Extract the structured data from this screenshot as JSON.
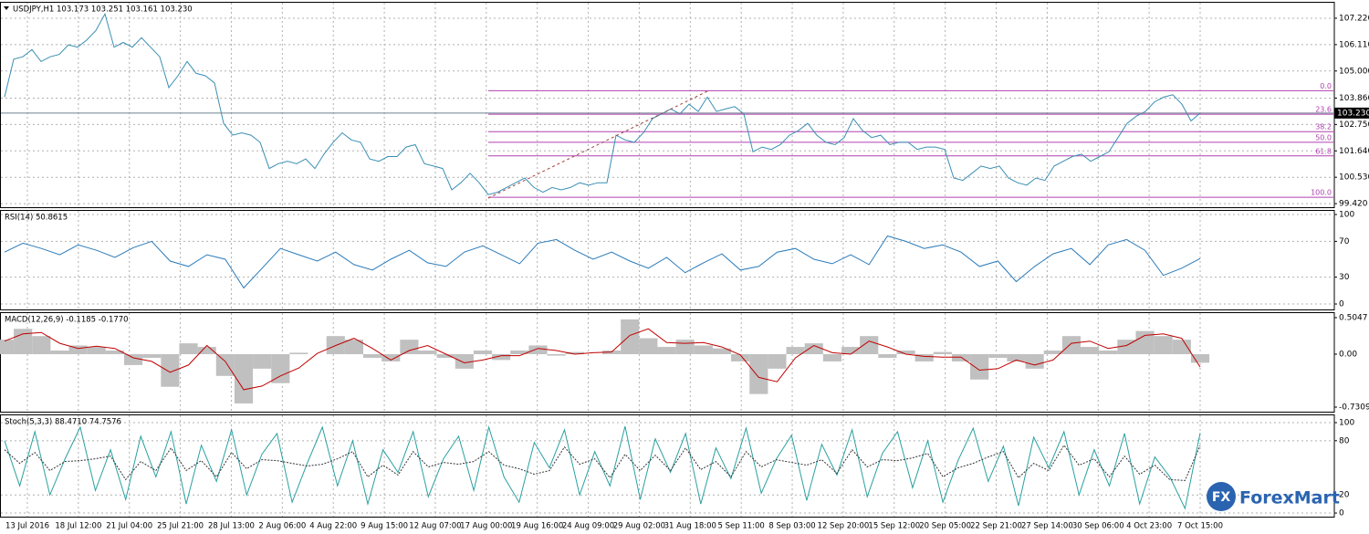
{
  "chart_data": [
    {
      "type": "line",
      "title": "USDJPY,H1  103.173 103.251 103.161 103.230",
      "series": [
        {
          "color": "#3a8fb3",
          "values": [
            103.9,
            105.5,
            105.6,
            105.9,
            105.4,
            105.6,
            105.7,
            106.1,
            106.0,
            106.3,
            106.7,
            107.4,
            106.0,
            106.2,
            106.0,
            106.4,
            106.0,
            105.6,
            104.3,
            104.8,
            105.4,
            104.9,
            104.8,
            104.5,
            102.8,
            102.3,
            102.4,
            102.3,
            102.0,
            100.9,
            101.1,
            101.2,
            101.1,
            101.3,
            100.9,
            101.5,
            102.0,
            102.4,
            102.1,
            102.0,
            101.3,
            101.2,
            101.4,
            101.4,
            101.8,
            101.9,
            101.1,
            101.0,
            100.9,
            100.0,
            100.3,
            100.7,
            100.3,
            99.8,
            99.9,
            100.1,
            100.3,
            100.5,
            100.1,
            99.9,
            100.1,
            100.0,
            100.1,
            100.3,
            100.2,
            100.3,
            100.3,
            102.3,
            102.1,
            102.0,
            102.4,
            103.0,
            103.2,
            103.4,
            103.2,
            103.6,
            103.3,
            103.9,
            103.3,
            103.4,
            103.5,
            103.2,
            101.6,
            101.8,
            101.7,
            101.9,
            102.3,
            102.5,
            102.8,
            102.3,
            102.0,
            101.9,
            102.2,
            103.0,
            102.5,
            102.2,
            102.3,
            101.9,
            102.0,
            102.0,
            101.7,
            101.8,
            101.8,
            101.7,
            100.5,
            100.4,
            100.7,
            101.0,
            100.9,
            101.0,
            100.5,
            100.3,
            100.2,
            100.5,
            100.4,
            101.0,
            101.2,
            101.4,
            101.5,
            101.2,
            101.4,
            101.6,
            102.2,
            102.8,
            103.1,
            103.3,
            103.7,
            103.9,
            104.0,
            103.6,
            102.9,
            103.23
          ]
        }
      ],
      "ylim": [
        99.27,
        107.91
      ],
      "yticks": [
        {
          "value": 107.22,
          "label": "107.220"
        },
        {
          "value": 106.11,
          "label": "106.110"
        },
        {
          "value": 105.0,
          "label": "105.000"
        },
        {
          "value": 103.86,
          "label": "103.860"
        },
        {
          "value": 102.75,
          "label": "102.750"
        },
        {
          "value": 101.64,
          "label": "101.640"
        },
        {
          "value": 100.53,
          "label": "100.530"
        },
        {
          "value": 99.42,
          "label": "99.420"
        }
      ],
      "last_price": {
        "value": 103.23,
        "label": "103.230"
      },
      "fib_color": "#b040b0",
      "fib_levels": [
        {
          "value": 104.17,
          "label": "0.0"
        },
        {
          "value": 103.18,
          "label": "23.6"
        },
        {
          "value": 102.45,
          "label": "38.2"
        },
        {
          "value": 102.0,
          "label": "50.0"
        },
        {
          "value": 101.43,
          "label": "61.8"
        },
        {
          "value": 99.69,
          "label": "100.0"
        }
      ],
      "grid": true
    },
    {
      "type": "line",
      "title": "RSI(14) 50.8615",
      "series": [
        {
          "color": "#2b7bb9",
          "values": [
            58,
            68,
            62,
            55,
            66,
            60,
            52,
            63,
            70,
            48,
            42,
            55,
            50,
            18,
            40,
            62,
            55,
            48,
            58,
            44,
            38,
            50,
            60,
            46,
            42,
            58,
            65,
            55,
            45,
            68,
            72,
            60,
            50,
            58,
            48,
            40,
            52,
            35,
            46,
            56,
            38,
            42,
            58,
            62,
            50,
            45,
            55,
            44,
            76,
            70,
            62,
            66,
            58,
            42,
            48,
            25,
            42,
            56,
            62,
            44,
            66,
            72,
            60,
            32,
            40,
            50.8615
          ]
        }
      ],
      "ylim": [
        -6.1,
        105.1
      ],
      "yticks": [
        100,
        70,
        30,
        0
      ],
      "grid": true
    },
    {
      "type": "bar",
      "title": "MACD(12,26,9) -0.1185 -0.1770",
      "series": [
        {
          "color": "#c0c0c0",
          "values": [
            0.2,
            0.35,
            0.25,
            0.05,
            0.12,
            0.1,
            0.05,
            -0.15,
            -0.05,
            -0.45,
            0.15,
            0.1,
            -0.3,
            -0.68,
            -0.2,
            -0.4,
            0.02,
            0.0,
            0.25,
            0.2,
            -0.05,
            -0.1,
            0.2,
            0.05,
            -0.05,
            -0.2,
            0.05,
            -0.08,
            0.05,
            0.12,
            -0.02,
            0.03,
            0.0,
            0.05,
            0.48,
            0.22,
            0.1,
            0.2,
            0.12,
            0.08,
            -0.1,
            -0.55,
            -0.2,
            0.1,
            0.15,
            -0.1,
            0.1,
            0.25,
            -0.05,
            0.05,
            -0.1,
            0.03,
            -0.1,
            -0.35,
            -0.05,
            -0.1,
            -0.2,
            0.05,
            0.25,
            0.1,
            0.05,
            0.2,
            0.32,
            0.25,
            0.2,
            -0.1185
          ]
        },
        {
          "color": "#c00000",
          "values": [
            0.18,
            0.28,
            0.3,
            0.15,
            0.08,
            0.11,
            0.08,
            -0.05,
            -0.1,
            -0.25,
            -0.15,
            0.12,
            -0.1,
            -0.49,
            -0.44,
            -0.3,
            -0.19,
            0.01,
            0.12,
            0.22,
            0.08,
            -0.08,
            0.05,
            0.12,
            0.0,
            -0.12,
            -0.08,
            -0.02,
            -0.02,
            0.08,
            0.05,
            0.0,
            0.02,
            0.03,
            0.26,
            0.35,
            0.16,
            0.15,
            0.16,
            0.1,
            -0.01,
            -0.32,
            -0.38,
            -0.05,
            0.12,
            0.02,
            0.0,
            0.18,
            0.1,
            0.0,
            -0.03,
            -0.04,
            -0.04,
            -0.22,
            -0.2,
            -0.08,
            -0.15,
            -0.08,
            0.15,
            0.18,
            0.08,
            0.12,
            0.26,
            0.28,
            0.22,
            -0.177
          ]
        }
      ],
      "ylim": [
        -0.794,
        0.58
      ],
      "yticks": [
        {
          "value": 0.5047,
          "label": "0.5047"
        },
        {
          "value": 0,
          "label": "0.00"
        },
        {
          "value": -0.7309,
          "label": "-0.7309"
        }
      ],
      "grid": false
    },
    {
      "type": "line",
      "title": "Stoch(5,3,3) 88.4710 74.7576",
      "series": [
        {
          "color": "#2aa0a0",
          "line_style": "solid",
          "values": [
            80,
            30,
            90,
            20,
            60,
            95,
            25,
            70,
            15,
            85,
            40,
            90,
            10,
            75,
            35,
            92,
            20,
            65,
            88,
            12,
            55,
            95,
            30,
            80,
            10,
            70,
            45,
            90,
            18,
            60,
            85,
            25,
            95,
            40,
            12,
            78,
            50,
            92,
            20,
            68,
            30,
            96,
            15,
            82,
            45,
            88,
            10,
            72,
            38,
            94,
            22,
            60,
            86,
            14,
            76,
            42,
            92,
            18,
            66,
            90,
            28,
            80,
            12,
            58,
            94,
            35,
            74,
            8,
            84,
            50,
            90,
            20,
            70,
            30,
            88,
            10,
            62,
            40,
            5,
            88.471
          ]
        },
        {
          "color": "#333333",
          "line_style": "dashed",
          "values": [
            70,
            55,
            67,
            47,
            57,
            58,
            60,
            63,
            37,
            57,
            47,
            72,
            47,
            58,
            40,
            67,
            49,
            59,
            58,
            55,
            52,
            54,
            60,
            68,
            40,
            53,
            42,
            68,
            51,
            56,
            54,
            57,
            68,
            53,
            49,
            43,
            47,
            73,
            54,
            60,
            39,
            65,
            47,
            64,
            47,
            72,
            48,
            57,
            40,
            68,
            51,
            59,
            56,
            53,
            59,
            44,
            70,
            51,
            59,
            58,
            61,
            66,
            40,
            50,
            55,
            62,
            68,
            39,
            55,
            47,
            75,
            53,
            60,
            40,
            63,
            43,
            53,
            37,
            36,
            74.7576
          ]
        }
      ],
      "ylim": [
        -4,
        109.1
      ],
      "yticks": [
        100,
        80,
        20,
        0
      ],
      "grid": true
    }
  ],
  "time_labels": [
    "13 Jul 2016",
    "18 Jul 12:00",
    "21 Jul 04:00",
    "25 Jul 21:00",
    "28 Jul 13:00",
    "2 Aug 06:00",
    "4 Aug 22:00",
    "9 Aug 15:00",
    "12 Aug 07:00",
    "17 Aug 00:00",
    "19 Aug 16:00",
    "24 Aug 09:00",
    "29 Aug 02:00",
    "31 Aug 18:00",
    "5 Sep 11:00",
    "8 Sep 03:00",
    "12 Sep 20:00",
    "15 Sep 12:00",
    "20 Sep 05:00",
    "22 Sep 21:00",
    "27 Sep 14:00",
    "30 Sep 06:00",
    "4 Oct 23:00",
    "7 Oct 15:00"
  ],
  "logo": {
    "mark": "FX",
    "name": "ForexMart"
  }
}
